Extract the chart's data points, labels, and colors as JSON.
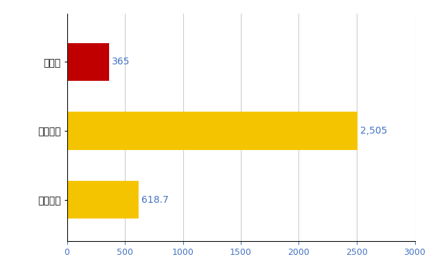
{
  "categories": [
    "全国平均",
    "全国最大",
    "山口県"
  ],
  "values": [
    618.7,
    2505,
    365
  ],
  "bar_colors": [
    "#F5C400",
    "#F5C400",
    "#C00000"
  ],
  "value_labels": [
    "618.7",
    "2,505",
    "365"
  ],
  "xlim": [
    0,
    3000
  ],
  "xticks": [
    0,
    500,
    1000,
    1500,
    2000,
    2500,
    3000
  ],
  "background_color": "#ffffff",
  "grid_color": "#cccccc",
  "bar_height": 0.55,
  "label_color": "#4472C4",
  "tick_label_color": "#4472C4",
  "figsize": [
    6.5,
    4.0
  ],
  "dpi": 100
}
